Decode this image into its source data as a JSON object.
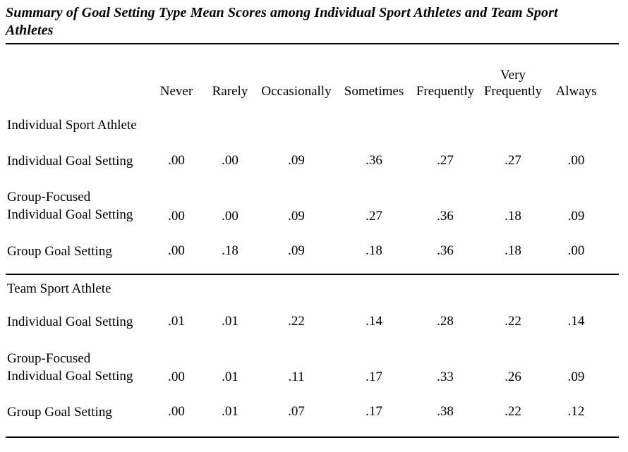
{
  "page": {
    "background_color": "#ffffff",
    "text_color": "#000000",
    "rule_color": "#000000"
  },
  "table": {
    "title": "Summary of Goal Setting Type Mean Scores among Individual Sport Athletes and Team Sport\nAthletes",
    "columns": [
      "Never",
      "Rarely",
      "Occasionally",
      "Sometimes",
      "Frequently",
      "Very\nFrequently",
      "Always"
    ],
    "sections": [
      {
        "name": "Individual Sport Athlete",
        "rows": [
          {
            "label": "Individual Goal Setting",
            "values": [
              ".00",
              ".00",
              ".09",
              ".36",
              ".27",
              ".27",
              ".00"
            ]
          },
          {
            "label": "Group-Focused\nIndividual Goal Setting",
            "values": [
              ".00",
              ".00",
              ".09",
              ".27",
              ".36",
              ".18",
              ".09"
            ]
          },
          {
            "label": "Group Goal Setting",
            "values": [
              ".00",
              ".18",
              ".09",
              ".18",
              ".36",
              ".18",
              ".00"
            ]
          }
        ]
      },
      {
        "name": "Team Sport Athlete",
        "rows": [
          {
            "label": "Individual Goal Setting",
            "values": [
              ".01",
              ".01",
              ".22",
              ".14",
              ".28",
              ".22",
              ".14"
            ]
          },
          {
            "label": "Group-Focused\nIndividual Goal Setting",
            "values": [
              ".00",
              ".01",
              ".11",
              ".17",
              ".33",
              ".26",
              ".09"
            ]
          },
          {
            "label": "Group Goal Setting",
            "values": [
              ".00",
              ".01",
              ".07",
              ".17",
              ".38",
              ".22",
              ".12"
            ]
          }
        ]
      }
    ]
  }
}
